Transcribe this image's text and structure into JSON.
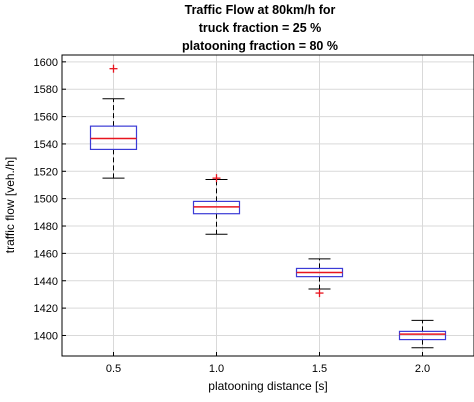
{
  "chart_data": {
    "type": "box",
    "title_lines": [
      "Traffic Flow at 80km/h for",
      "truck fraction = 25 %",
      "platooning fraction = 80 %"
    ],
    "xlabel": "platooning distance [s]",
    "ylabel": "traffic flow [veh./h]",
    "categories": [
      "0.5",
      "1.0",
      "1.5",
      "2.0"
    ],
    "ylim": [
      1385,
      1605
    ],
    "yticks": [
      1400,
      1420,
      1440,
      1460,
      1480,
      1500,
      1520,
      1540,
      1560,
      1580,
      1600
    ],
    "grid": true,
    "boxes": [
      {
        "category": "0.5",
        "whisker_low": 1515,
        "q1": 1536,
        "median": 1544,
        "q3": 1553,
        "whisker_high": 1573,
        "outliers": [
          1595
        ]
      },
      {
        "category": "1.0",
        "whisker_low": 1474,
        "q1": 1489,
        "median": 1494,
        "q3": 1498,
        "whisker_high": 1514,
        "outliers": [
          1515
        ]
      },
      {
        "category": "1.5",
        "whisker_low": 1434,
        "q1": 1443,
        "median": 1446,
        "q3": 1449,
        "whisker_high": 1456,
        "outliers": [
          1431
        ]
      },
      {
        "category": "2.0",
        "whisker_low": 1391,
        "q1": 1397,
        "median": 1401,
        "q3": 1403,
        "whisker_high": 1411,
        "outliers": []
      }
    ],
    "colors": {
      "box": "#3b3bd6",
      "median": "#e8141e",
      "outlier": "#e8141e",
      "whisker": "#000000",
      "grid": "#d9d9d9"
    }
  }
}
